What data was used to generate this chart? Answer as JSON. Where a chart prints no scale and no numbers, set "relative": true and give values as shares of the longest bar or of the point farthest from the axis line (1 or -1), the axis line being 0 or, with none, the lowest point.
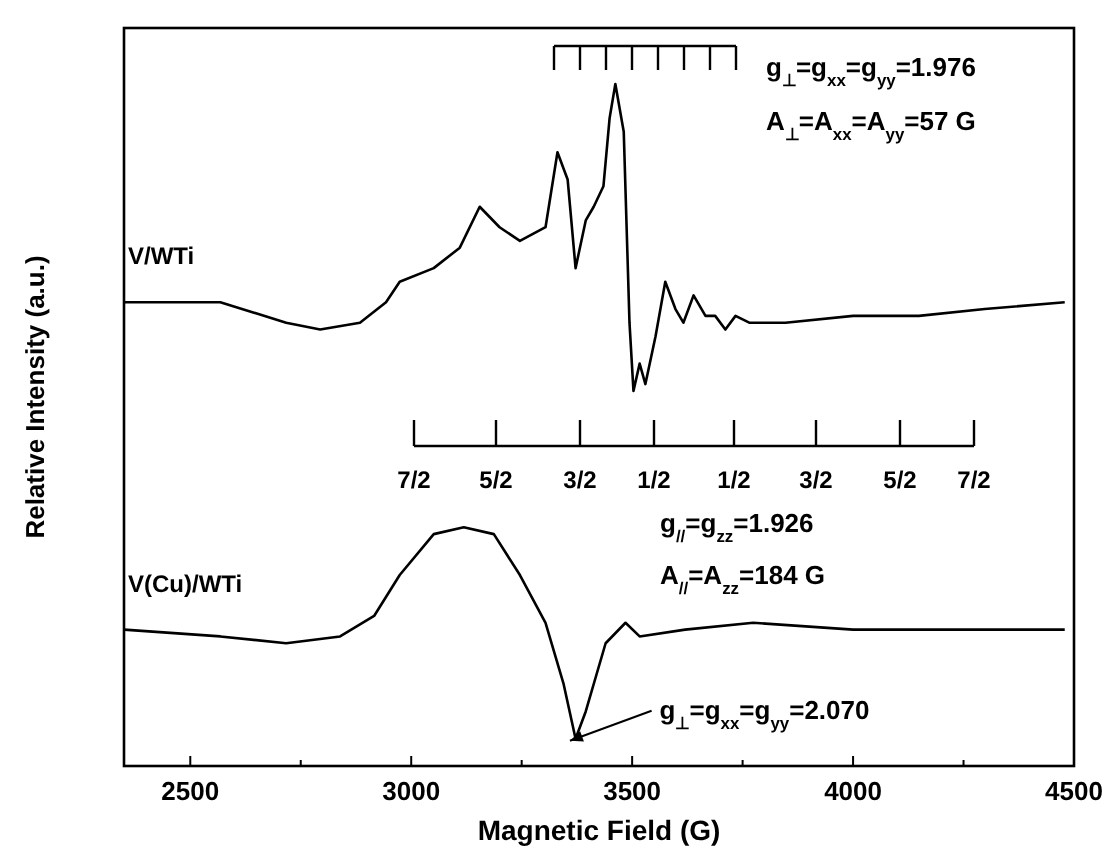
{
  "chart_data": {
    "type": "line",
    "xlabel": "Magnetic Field (G)",
    "ylabel": "Relative Intensity (a.u.)",
    "relative": true,
    "xlim": [
      2350,
      4500
    ],
    "xticks": [
      2500,
      {
        "value": 2750,
        "label": null
      },
      3000,
      {
        "value": 3250,
        "label": null
      },
      3500,
      {
        "value": 3750,
        "label": null
      },
      4000,
      {
        "value": 4250,
        "label": null
      },
      4500
    ],
    "series": [
      {
        "name": "V/WTi",
        "color": "#000000",
        "x": [
          2350,
          2568,
          2717,
          2794,
          2884,
          2943,
          2974,
          3051,
          3110,
          3155,
          3200,
          3246,
          3304,
          3331,
          3354,
          3372,
          3395,
          3413,
          3435,
          3449,
          3462,
          3481,
          3494,
          3503,
          3517,
          3530,
          3553,
          3575,
          3598,
          3616,
          3639,
          3666,
          3688,
          3711,
          3734,
          3765,
          3801,
          3847,
          4000,
          4149,
          4298,
          4479
        ],
        "values": [
          0.68,
          0.68,
          0.65,
          0.64,
          0.65,
          0.68,
          0.71,
          0.73,
          0.76,
          0.82,
          0.79,
          0.77,
          0.79,
          0.9,
          0.86,
          0.73,
          0.8,
          0.82,
          0.85,
          0.95,
          1.0,
          0.93,
          0.65,
          0.55,
          0.59,
          0.56,
          0.63,
          0.71,
          0.67,
          0.65,
          0.69,
          0.66,
          0.66,
          0.64,
          0.66,
          0.65,
          0.65,
          0.65,
          0.66,
          0.66,
          0.67,
          0.68
        ]
      },
      {
        "name": "V(Cu)/WTi",
        "color": "#000000",
        "x": [
          2350,
          2568,
          2717,
          2839,
          2916,
          2974,
          3051,
          3119,
          3187,
          3246,
          3304,
          3345,
          3372,
          3395,
          3440,
          3485,
          3517,
          3620,
          3774,
          4000,
          4226,
          4479
        ],
        "values": [
          0.2,
          0.19,
          0.18,
          0.19,
          0.22,
          0.28,
          0.34,
          0.35,
          0.34,
          0.28,
          0.21,
          0.12,
          0.04,
          0.08,
          0.18,
          0.21,
          0.19,
          0.2,
          0.21,
          0.2,
          0.2,
          0.2
        ]
      }
    ],
    "annotations": [
      "g$_{⊥}$=g$_{xx}$=g$_{yy}$=1.976",
      "A$_{⊥}$=A$_{xx}$=A$_{yy}$=57 G",
      "g$_{//}$=g$_{zz}$=1.926",
      "A$_{//}$=A$_{zz}$=184 G",
      {
        "text": "g$_{⊥}$=g$_{xx}$=g$_{yy}$=2.070",
        "x": 3372,
        "y": 0.04
      },
      "7/2",
      "5/2",
      "3/2",
      "1/2",
      "1/2",
      "3/2",
      "5/2",
      "7/2"
    ]
  }
}
